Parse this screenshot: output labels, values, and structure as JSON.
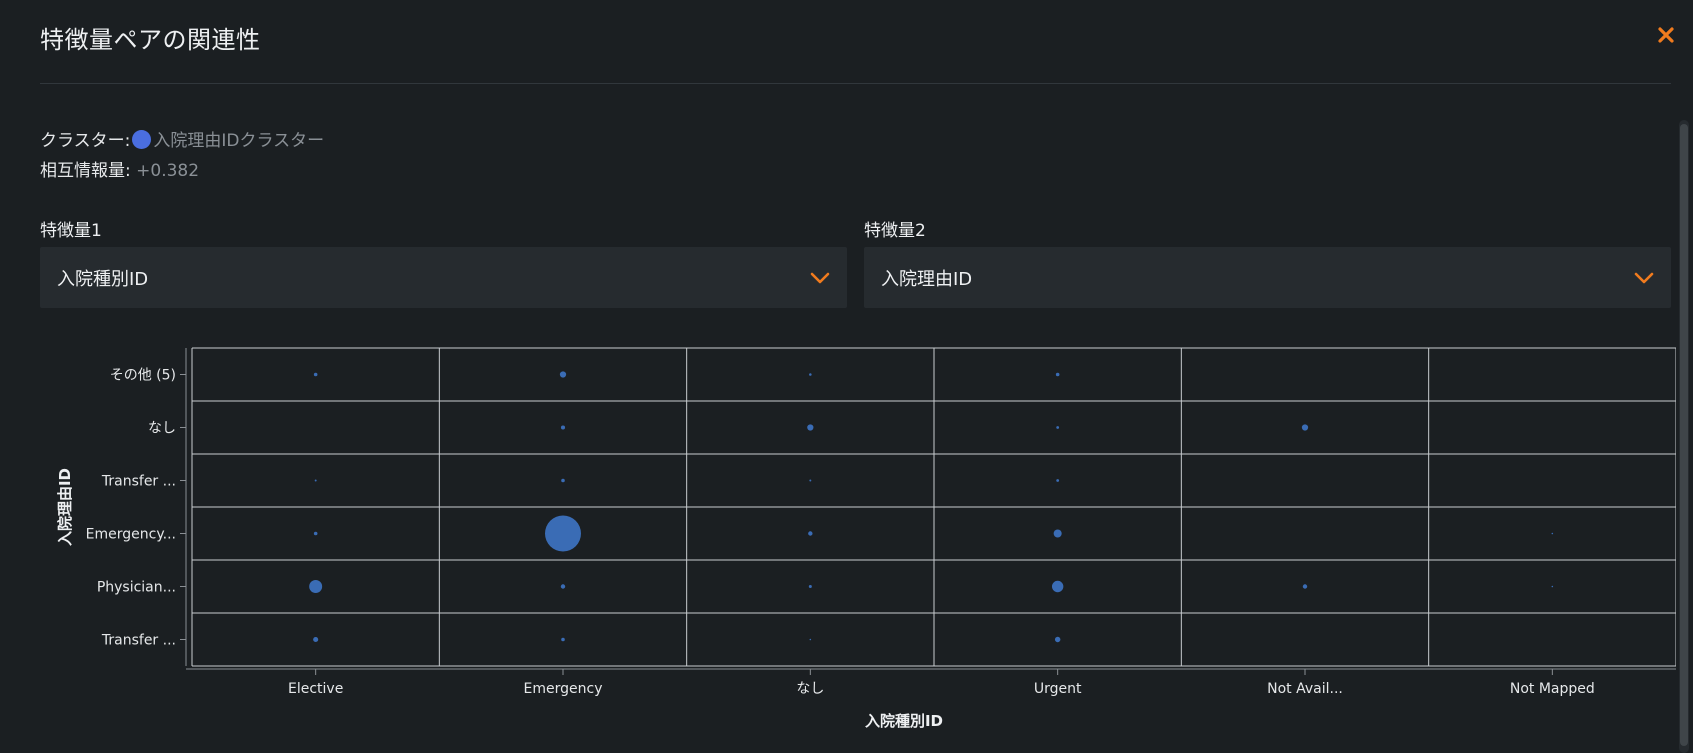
{
  "dialog": {
    "title": "特徴量ペアの関連性",
    "close_icon": "close-icon",
    "accent_color": "#f07b1e"
  },
  "info": {
    "cluster_label": "クラスター:",
    "cluster_value": "入院理由IDクラスター",
    "cluster_color": "#4a6ee0",
    "mi_label": "相互情報量:",
    "mi_value": "+0.382"
  },
  "feature1": {
    "label": "特徴量1",
    "value": "入院種別ID",
    "icon": "chevron-down-icon"
  },
  "feature2": {
    "label": "特徴量2",
    "value": "入院理由ID",
    "icon": "chevron-down-icon"
  },
  "chart_data": {
    "type": "scatter",
    "xlabel": "入院種別ID",
    "ylabel": "入院理由ID",
    "x_categories": [
      "Elective",
      "Emergency",
      "なし",
      "Urgent",
      "Not Avail...",
      "Not Mapped"
    ],
    "y_categories": [
      "その他 (5)",
      "なし",
      "Transfer ...",
      "Emergency...",
      "Physician...",
      "Transfer ..."
    ],
    "point_color": "#3a6cb5",
    "grid": true,
    "bubble_sizes": [
      [
        1,
        3,
        0.5,
        1,
        0,
        0
      ],
      [
        0,
        1.3,
        3,
        0.6,
        3,
        0
      ],
      [
        0.3,
        1,
        0.3,
        0.6,
        0,
        0
      ],
      [
        1,
        100,
        1.5,
        5,
        0,
        0.2
      ],
      [
        13,
        1.5,
        0.7,
        10,
        1.5,
        0.2
      ],
      [
        2,
        1,
        0.2,
        2.3,
        0,
        0
      ]
    ]
  }
}
